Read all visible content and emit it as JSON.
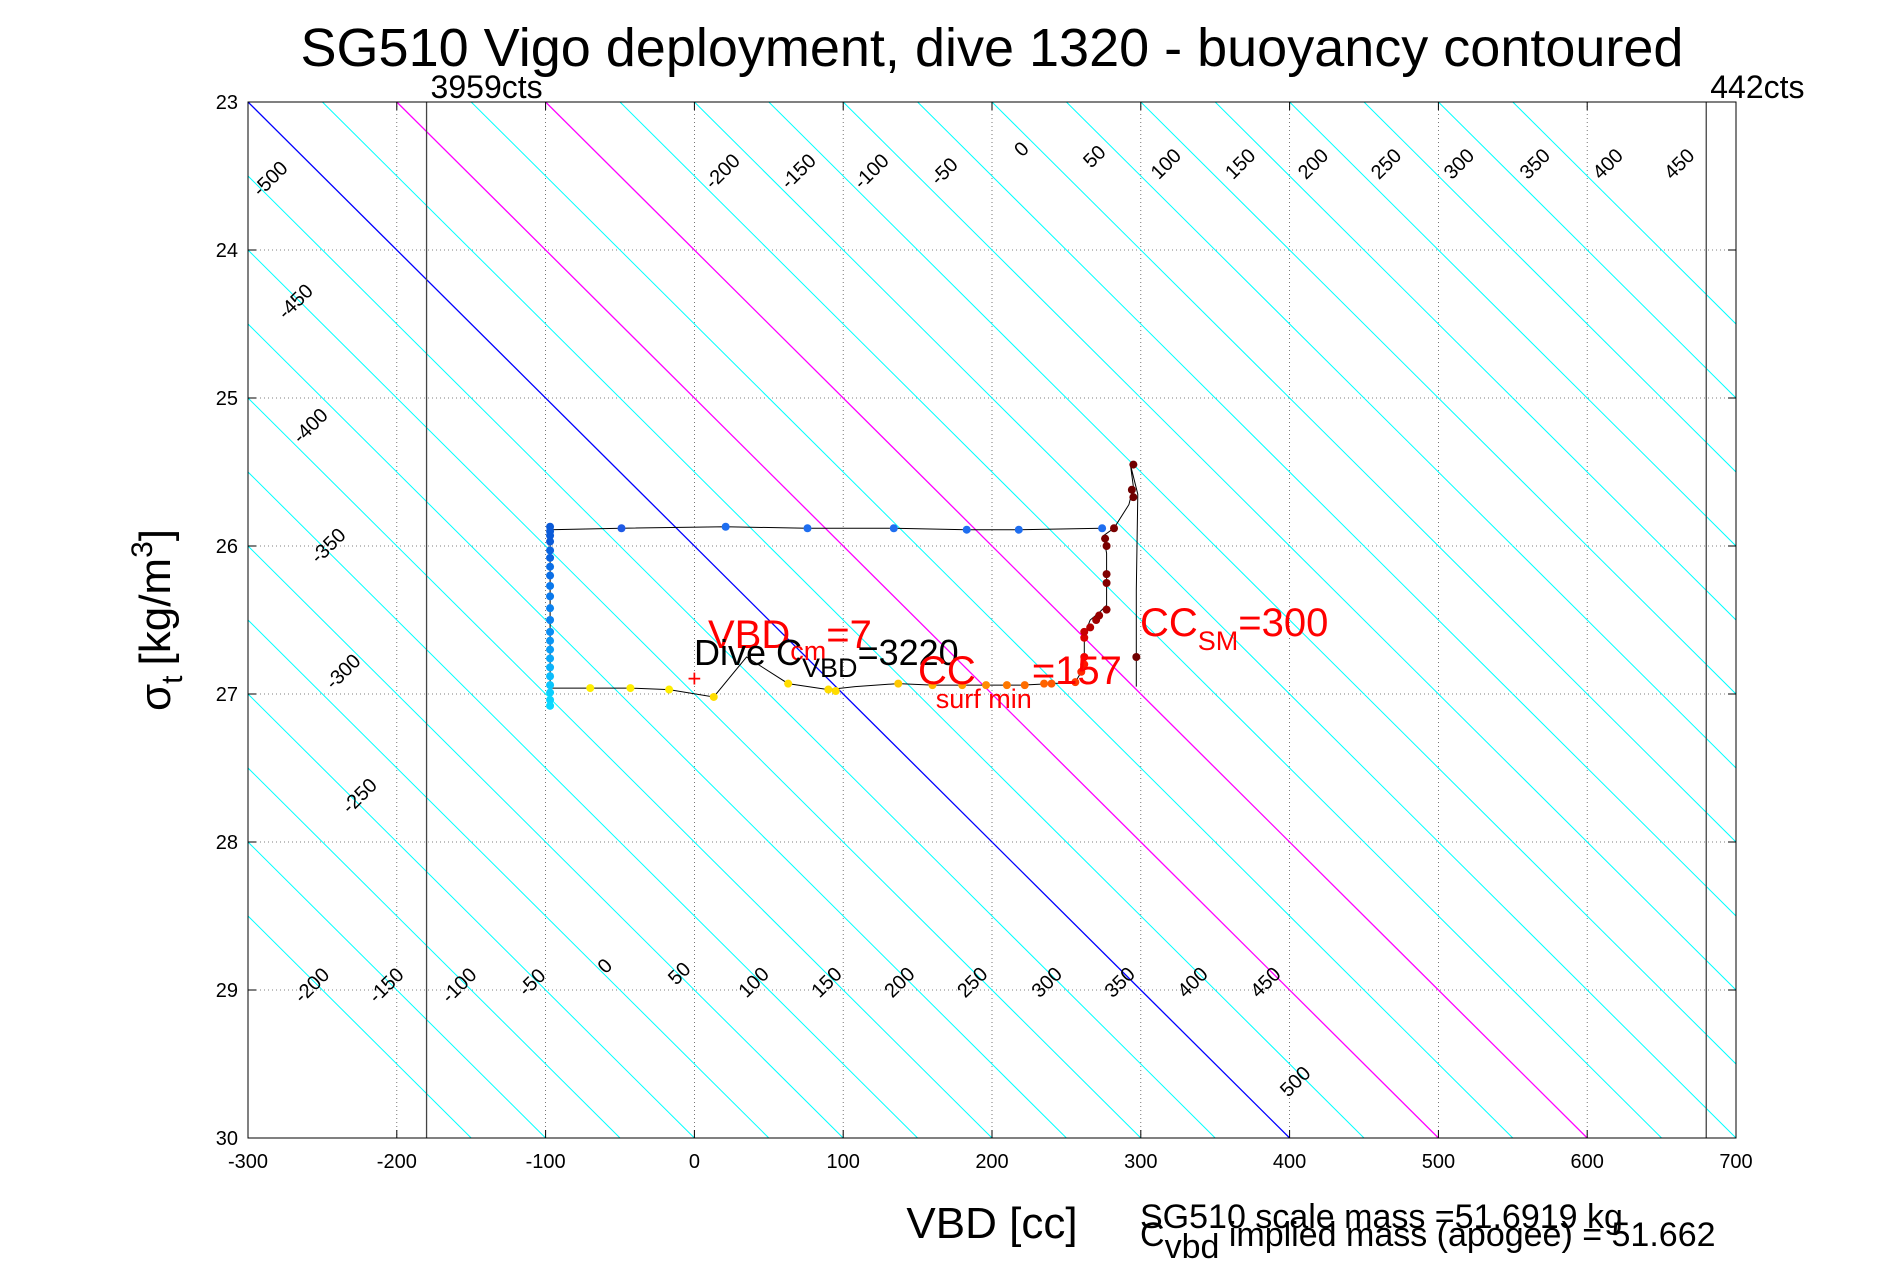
{
  "chart_data": {
    "type": "scatter",
    "title": "SG510 Vigo deployment, dive 1320 - buoyancy contoured",
    "xlabel": "VBD [cc]",
    "ylabel_main": "σ",
    "ylabel_sub": "t",
    "ylabel_units": "[kg/m",
    "ylabel_sup": "3",
    "ylabel_close": "]",
    "xlim": [
      -300,
      700
    ],
    "ylim": [
      23,
      30
    ],
    "y_reversed": true,
    "grid": true,
    "xticks": [
      -300,
      -200,
      -100,
      0,
      100,
      200,
      300,
      400,
      500,
      600,
      700
    ],
    "yticks": [
      23,
      24,
      25,
      26,
      27,
      28,
      29,
      30
    ],
    "contour_slope_cc_per_sigma": 100,
    "contour_levels": [
      -550,
      -500,
      -450,
      -400,
      -350,
      -300,
      -250,
      -200,
      -150,
      -100,
      -50,
      0,
      50,
      100,
      150,
      200,
      250,
      300,
      350,
      400,
      450,
      500,
      550,
      600,
      650,
      700,
      750,
      800,
      850
    ],
    "contour_highlight": {
      "zero": "#0000ff",
      "limits": "#ff00ff",
      "default": "#00ffff",
      "limit_levels": [
        100,
        200
      ]
    },
    "contour_labels_top": [
      {
        "text": "-500",
        "x": -282,
        "y": 23.55
      },
      {
        "text": "-450",
        "x": -265,
        "y": 24.38
      },
      {
        "text": "-400",
        "x": -255,
        "y": 25.22
      },
      {
        "text": "-350",
        "x": -243,
        "y": 26.03
      },
      {
        "text": "-300",
        "x": -233,
        "y": 26.88
      },
      {
        "text": "-250",
        "x": -222,
        "y": 27.72
      },
      {
        "text": "-200",
        "x": 22,
        "y": 23.5
      },
      {
        "text": "-150",
        "x": 73,
        "y": 23.5
      },
      {
        "text": "-100",
        "x": 122,
        "y": 23.5
      },
      {
        "text": "-50",
        "x": 171,
        "y": 23.5
      },
      {
        "text": "0",
        "x": 223,
        "y": 23.35
      },
      {
        "text": "50",
        "x": 272,
        "y": 23.4
      },
      {
        "text": "100",
        "x": 320,
        "y": 23.45
      },
      {
        "text": "150",
        "x": 370,
        "y": 23.45
      },
      {
        "text": "200",
        "x": 419,
        "y": 23.45
      },
      {
        "text": "250",
        "x": 468,
        "y": 23.45
      },
      {
        "text": "300",
        "x": 517,
        "y": 23.45
      },
      {
        "text": "350",
        "x": 568,
        "y": 23.45
      },
      {
        "text": "400",
        "x": 617,
        "y": 23.45
      },
      {
        "text": "450",
        "x": 665,
        "y": 23.45
      }
    ],
    "contour_labels_bottom": [
      {
        "text": "-200",
        "x": -254,
        "y": 29.0
      },
      {
        "text": "-150",
        "x": -204,
        "y": 29.0
      },
      {
        "text": "-100",
        "x": -155,
        "y": 29.0
      },
      {
        "text": "-50",
        "x": -106,
        "y": 28.98
      },
      {
        "text": "0",
        "x": -57,
        "y": 28.87
      },
      {
        "text": "50",
        "x": -7,
        "y": 28.92
      },
      {
        "text": "100",
        "x": 43,
        "y": 28.98
      },
      {
        "text": "150",
        "x": 92,
        "y": 28.98
      },
      {
        "text": "200",
        "x": 141,
        "y": 28.98
      },
      {
        "text": "250",
        "x": 190,
        "y": 28.98
      },
      {
        "text": "300",
        "x": 240,
        "y": 28.98
      },
      {
        "text": "350",
        "x": 289,
        "y": 28.98
      },
      {
        "text": "400",
        "x": 338,
        "y": 28.98
      },
      {
        "text": "450",
        "x": 387,
        "y": 28.98
      },
      {
        "text": "500",
        "x": 407,
        "y": 29.65
      }
    ],
    "vbd_limits": [
      {
        "x": -180,
        "label": "3959cts"
      },
      {
        "x": 680,
        "label": "442cts"
      }
    ],
    "dive_path": [
      {
        "x": -97,
        "y": 26.96
      },
      {
        "x": -70,
        "y": 26.96
      },
      {
        "x": -43,
        "y": 26.96
      },
      {
        "x": -17,
        "y": 26.97
      },
      {
        "x": 13,
        "y": 27.02
      },
      {
        "x": 35,
        "y": 26.75
      },
      {
        "x": 63,
        "y": 26.93
      },
      {
        "x": 90,
        "y": 26.97
      },
      {
        "x": 108,
        "y": 26.95
      },
      {
        "x": 137,
        "y": 26.93
      },
      {
        "x": 160,
        "y": 26.94
      },
      {
        "x": 180,
        "y": 26.94
      },
      {
        "x": 200,
        "y": 26.94
      },
      {
        "x": 220,
        "y": 26.94
      },
      {
        "x": 240,
        "y": 26.93
      },
      {
        "x": 256,
        "y": 26.92
      },
      {
        "x": 260,
        "y": 26.85
      },
      {
        "x": 262,
        "y": 26.75
      },
      {
        "x": 262,
        "y": 26.6
      },
      {
        "x": 266,
        "y": 26.5
      },
      {
        "x": 272,
        "y": 26.45
      },
      {
        "x": 277,
        "y": 26.4
      },
      {
        "x": 277,
        "y": 26.2
      },
      {
        "x": 277,
        "y": 26.05
      },
      {
        "x": 275,
        "y": 25.93
      },
      {
        "x": 282,
        "y": 25.88
      },
      {
        "x": 292,
        "y": 25.72
      },
      {
        "x": 295,
        "y": 25.6
      },
      {
        "x": 293,
        "y": 25.45
      },
      {
        "x": 298,
        "y": 25.65
      },
      {
        "x": 297,
        "y": 26.3
      },
      {
        "x": 297,
        "y": 26.78
      },
      {
        "x": 297,
        "y": 26.95
      }
    ],
    "climb_path": [
      {
        "x": 274,
        "y": 25.88
      },
      {
        "x": 218,
        "y": 25.89
      },
      {
        "x": 183,
        "y": 25.89
      },
      {
        "x": 134,
        "y": 25.88
      },
      {
        "x": 76,
        "y": 25.88
      },
      {
        "x": 21,
        "y": 25.87
      },
      {
        "x": -49,
        "y": 25.88
      },
      {
        "x": -97,
        "y": 25.89
      },
      {
        "x": -97,
        "y": 26.95
      }
    ],
    "points": [
      {
        "x": -97,
        "y": 25.87,
        "c": "#0a5ad8"
      },
      {
        "x": -97,
        "y": 25.9,
        "c": "#0a5ad8"
      },
      {
        "x": -97,
        "y": 25.93,
        "c": "#0a5ad8"
      },
      {
        "x": -97,
        "y": 25.97,
        "c": "#0a5ad8"
      },
      {
        "x": -97,
        "y": 26.03,
        "c": "#0a64e0"
      },
      {
        "x": -97,
        "y": 26.08,
        "c": "#0a64e0"
      },
      {
        "x": -97,
        "y": 26.14,
        "c": "#0a6ee6"
      },
      {
        "x": -97,
        "y": 26.2,
        "c": "#0a6ee6"
      },
      {
        "x": -97,
        "y": 26.27,
        "c": "#0a78ec"
      },
      {
        "x": -97,
        "y": 26.34,
        "c": "#0a78ec"
      },
      {
        "x": -97,
        "y": 26.42,
        "c": "#0a82f0"
      },
      {
        "x": -97,
        "y": 26.5,
        "c": "#0a82f0"
      },
      {
        "x": -97,
        "y": 26.58,
        "c": "#0a8cf2"
      },
      {
        "x": -97,
        "y": 26.64,
        "c": "#0a96f4"
      },
      {
        "x": -97,
        "y": 26.7,
        "c": "#0a9ef6"
      },
      {
        "x": -97,
        "y": 26.76,
        "c": "#0aa8f8"
      },
      {
        "x": -97,
        "y": 26.82,
        "c": "#0ab2fa"
      },
      {
        "x": -97,
        "y": 26.88,
        "c": "#0abcfc"
      },
      {
        "x": -97,
        "y": 26.94,
        "c": "#0ac6fe"
      },
      {
        "x": -97,
        "y": 26.99,
        "c": "#0acefe"
      },
      {
        "x": -97,
        "y": 27.04,
        "c": "#0ad4ff"
      },
      {
        "x": -97,
        "y": 27.08,
        "c": "#0ad8ff"
      },
      {
        "x": -49,
        "y": 25.88,
        "c": "#1e5ae6"
      },
      {
        "x": 21,
        "y": 25.87,
        "c": "#1e6ef0"
      },
      {
        "x": 76,
        "y": 25.88,
        "c": "#1e6ef0"
      },
      {
        "x": 134,
        "y": 25.88,
        "c": "#1e6ef0"
      },
      {
        "x": 183,
        "y": 25.89,
        "c": "#1e6ef0"
      },
      {
        "x": 218,
        "y": 25.89,
        "c": "#1e6ef0"
      },
      {
        "x": 274,
        "y": 25.88,
        "c": "#1e6ef0"
      },
      {
        "x": -70,
        "y": 26.96,
        "c": "#ffee00"
      },
      {
        "x": -43,
        "y": 26.96,
        "c": "#ffee00"
      },
      {
        "x": -17,
        "y": 26.97,
        "c": "#ffee00"
      },
      {
        "x": 13,
        "y": 27.02,
        "c": "#ffdd00"
      },
      {
        "x": 63,
        "y": 26.93,
        "c": "#ffdd00"
      },
      {
        "x": 90,
        "y": 26.97,
        "c": "#ffdd00"
      },
      {
        "x": 95,
        "y": 26.98,
        "c": "#ffdd00"
      },
      {
        "x": 137,
        "y": 26.93,
        "c": "#ffc800"
      },
      {
        "x": 160,
        "y": 26.94,
        "c": "#ffb400"
      },
      {
        "x": 180,
        "y": 26.94,
        "c": "#ffa000"
      },
      {
        "x": 196,
        "y": 26.94,
        "c": "#ff8c00"
      },
      {
        "x": 210,
        "y": 26.94,
        "c": "#ff7800"
      },
      {
        "x": 222,
        "y": 26.94,
        "c": "#ff6e00"
      },
      {
        "x": 235,
        "y": 26.93,
        "c": "#ff6400"
      },
      {
        "x": 240,
        "y": 26.93,
        "c": "#ff5a00"
      },
      {
        "x": 256,
        "y": 26.92,
        "c": "#ff3c00"
      },
      {
        "x": 260,
        "y": 26.85,
        "c": "#ff2800"
      },
      {
        "x": 262,
        "y": 26.8,
        "c": "#ff1400"
      },
      {
        "x": 262,
        "y": 26.75,
        "c": "#f00000"
      },
      {
        "x": 262,
        "y": 26.62,
        "c": "#dc0000"
      },
      {
        "x": 262,
        "y": 26.58,
        "c": "#c80000"
      },
      {
        "x": 266,
        "y": 26.55,
        "c": "#b40000"
      },
      {
        "x": 270,
        "y": 26.5,
        "c": "#a00000"
      },
      {
        "x": 272,
        "y": 26.47,
        "c": "#960000"
      },
      {
        "x": 277,
        "y": 26.43,
        "c": "#8c0000"
      },
      {
        "x": 277,
        "y": 26.25,
        "c": "#820000"
      },
      {
        "x": 277,
        "y": 26.19,
        "c": "#820000"
      },
      {
        "x": 277,
        "y": 26.0,
        "c": "#7a0000"
      },
      {
        "x": 276,
        "y": 25.95,
        "c": "#780000"
      },
      {
        "x": 282,
        "y": 25.88,
        "c": "#780000"
      },
      {
        "x": 295,
        "y": 25.45,
        "c": "#700000"
      },
      {
        "x": 294,
        "y": 25.62,
        "c": "#700000"
      },
      {
        "x": 295,
        "y": 25.67,
        "c": "#700000"
      },
      {
        "x": 297,
        "y": 26.75,
        "c": "#700000"
      }
    ],
    "dive_marker": {
      "x": 0,
      "y": 26.89,
      "symbol": "+"
    },
    "annotations": {
      "vbd_cm_main": "VBD",
      "vbd_cm_sub": "cm",
      "vbd_cm_value": "=7",
      "dive_cvbd_main": "Dive C",
      "dive_cvbd_sub": "VBD",
      "dive_cvbd_value": "=3220",
      "cc_surf_main": "CC",
      "cc_surf_sub": "surf min",
      "cc_surf_value": "=157",
      "cc_sm_main": "CC",
      "cc_sm_sub": "SM",
      "cc_sm_value": "=300"
    },
    "notes": {
      "scale_mass": "SG510 scale mass =51.6919 kg",
      "implied_mass_main": "C",
      "implied_mass_sub": "vbd",
      "implied_mass_text": " implied mass (apogee) = 51.662"
    }
  }
}
